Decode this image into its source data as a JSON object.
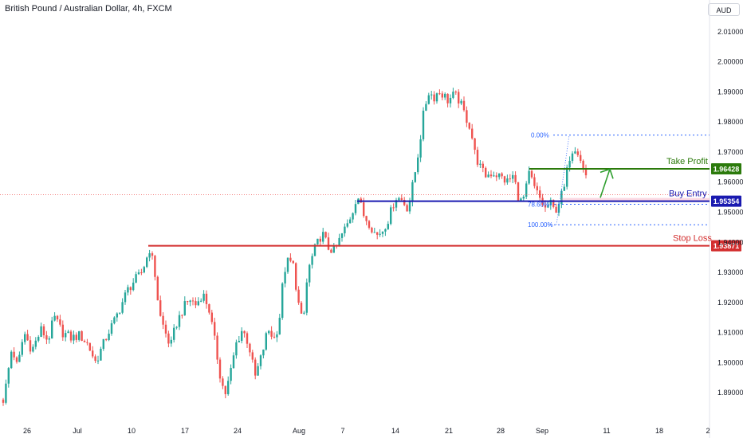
{
  "title": "British Pound / Australian Dollar, 4h, FXCM",
  "currency": "AUD",
  "chart_data": {
    "type": "candlestick",
    "ylim": [
      1.8825,
      2.013
    ],
    "y_ticks": [
      "2.01000",
      "2.00000",
      "1.99000",
      "1.98000",
      "1.97000",
      "1.96000",
      "1.95000",
      "1.94000",
      "1.93000",
      "1.92000",
      "1.91000",
      "1.90000",
      "1.89000"
    ],
    "x_ticks": [
      "26",
      "Jul",
      "10",
      "17",
      "24",
      "Aug",
      "7",
      "14",
      "21",
      "28",
      "Sep",
      "11",
      "18",
      "2"
    ],
    "colors": {
      "up": "#26a69a",
      "down": "#ef5350",
      "take_profit": "#2b7a0b",
      "entry": "#1a1ab0",
      "stop": "#d32f2f",
      "fib": "#2962ff"
    },
    "path": [
      [
        0,
        1.886
      ],
      [
        5,
        1.888
      ],
      [
        15,
        1.905
      ],
      [
        22,
        1.898
      ],
      [
        30,
        1.91
      ],
      [
        40,
        1.904
      ],
      [
        52,
        1.911
      ],
      [
        60,
        1.907
      ],
      [
        68,
        1.915
      ],
      [
        78,
        1.91
      ],
      [
        90,
        1.908
      ],
      [
        100,
        1.909
      ],
      [
        110,
        1.906
      ],
      [
        120,
        1.9
      ],
      [
        128,
        1.905
      ],
      [
        136,
        1.91
      ],
      [
        144,
        1.914
      ],
      [
        152,
        1.919
      ],
      [
        160,
        1.924
      ],
      [
        168,
        1.927
      ],
      [
        176,
        1.929
      ],
      [
        182,
        1.933
      ],
      [
        188,
        1.938
      ],
      [
        194,
        1.93
      ],
      [
        200,
        1.916
      ],
      [
        206,
        1.911
      ],
      [
        214,
        1.905
      ],
      [
        220,
        1.912
      ],
      [
        230,
        1.918
      ],
      [
        238,
        1.921
      ],
      [
        246,
        1.919
      ],
      [
        254,
        1.923
      ],
      [
        262,
        1.918
      ],
      [
        270,
        1.906
      ],
      [
        276,
        1.896
      ],
      [
        282,
        1.889
      ],
      [
        288,
        1.895
      ],
      [
        296,
        1.906
      ],
      [
        304,
        1.911
      ],
      [
        312,
        1.906
      ],
      [
        320,
        1.895
      ],
      [
        328,
        1.902
      ],
      [
        336,
        1.911
      ],
      [
        344,
        1.908
      ],
      [
        350,
        1.913
      ],
      [
        356,
        1.93
      ],
      [
        362,
        1.934
      ],
      [
        368,
        1.932
      ],
      [
        374,
        1.92
      ],
      [
        380,
        1.912
      ],
      [
        386,
        1.93
      ],
      [
        394,
        1.937
      ],
      [
        404,
        1.943
      ],
      [
        412,
        1.938
      ],
      [
        420,
        1.937
      ],
      [
        428,
        1.942
      ],
      [
        436,
        1.946
      ],
      [
        442,
        1.95
      ],
      [
        448,
        1.956
      ],
      [
        456,
        1.949
      ],
      [
        464,
        1.946
      ],
      [
        472,
        1.942
      ],
      [
        480,
        1.944
      ],
      [
        488,
        1.948
      ],
      [
        496,
        1.955
      ],
      [
        504,
        1.954
      ],
      [
        512,
        1.951
      ],
      [
        520,
        1.962
      ],
      [
        526,
        1.972
      ],
      [
        532,
        1.984
      ],
      [
        538,
        1.99
      ],
      [
        544,
        1.988
      ],
      [
        550,
        1.99
      ],
      [
        556,
        1.989
      ],
      [
        562,
        1.987
      ],
      [
        570,
        1.989
      ],
      [
        576,
        1.987
      ],
      [
        582,
        1.983
      ],
      [
        590,
        1.978
      ],
      [
        596,
        1.969
      ],
      [
        602,
        1.965
      ],
      [
        608,
        1.962
      ],
      [
        618,
        1.963
      ],
      [
        626,
        1.962
      ],
      [
        636,
        1.96
      ],
      [
        644,
        1.962
      ],
      [
        652,
        1.953
      ],
      [
        658,
        1.955
      ],
      [
        664,
        1.963
      ],
      [
        670,
        1.958
      ],
      [
        678,
        1.954
      ],
      [
        684,
        1.951
      ],
      [
        690,
        1.953
      ],
      [
        696,
        1.95
      ],
      [
        702,
        1.954
      ],
      [
        708,
        1.958
      ],
      [
        714,
        1.968
      ],
      [
        720,
        1.972
      ],
      [
        726,
        1.97
      ],
      [
        732,
        1.964
      ],
      [
        738,
        1.96
      ]
    ],
    "levels": [
      {
        "label": "Take Profit",
        "value": "1.96428",
        "price": 1.96428,
        "kind": "take_profit"
      },
      {
        "label": "Buy Entry",
        "value": "1.95354",
        "price": 1.95354,
        "kind": "entry"
      },
      {
        "label": "Stop Loss",
        "value": "1.93871",
        "price": 1.93871,
        "kind": "stop"
      }
    ],
    "fib": [
      {
        "label": "0.00%",
        "price": 1.9755
      },
      {
        "label": "78.60%",
        "price": 1.9525
      },
      {
        "label": "100.00%",
        "price": 1.9457
      }
    ],
    "entry_zone": [
      1.95354,
      1.9546
    ],
    "dotted_price_line": 1.9557
  }
}
